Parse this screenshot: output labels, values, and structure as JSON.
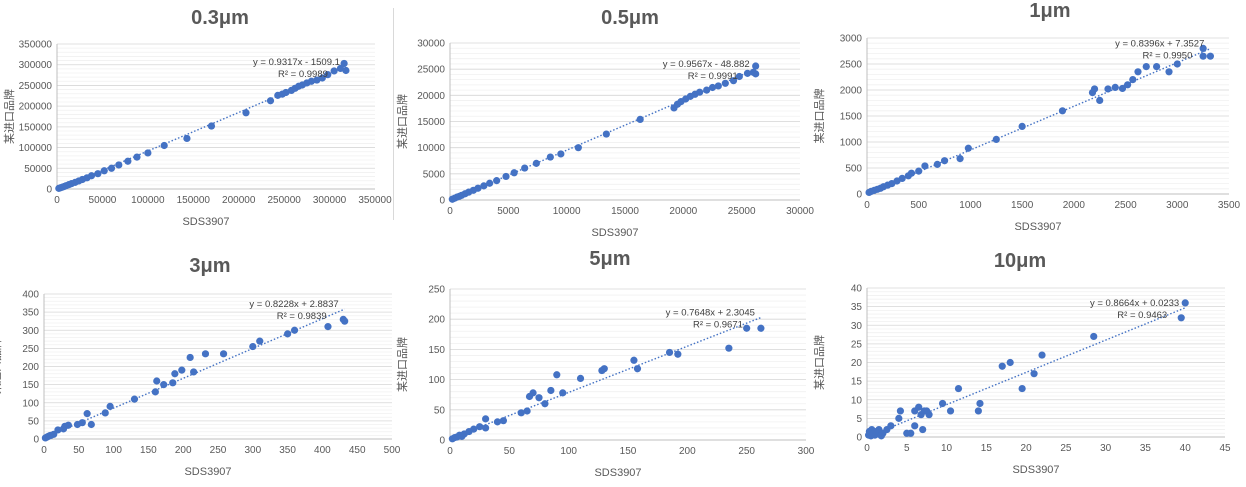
{
  "chart_data": [
    {
      "type": "scatter",
      "title": "0.3μm",
      "xlabel": "SDS3907",
      "ylabel": "某进口品牌",
      "xlim": [
        0,
        350000
      ],
      "xstep": 50000,
      "ylim": [
        0,
        350000
      ],
      "ystep": 50000,
      "grid": true,
      "equation": "y = 0.9317x - 1509.1",
      "r2": "R² = 0.9989",
      "trend": {
        "slope": 0.9317,
        "intercept": -1509.1
      },
      "points": [
        [
          2000,
          1500
        ],
        [
          4000,
          3000
        ],
        [
          6000,
          4500
        ],
        [
          8000,
          6000
        ],
        [
          10000,
          8000
        ],
        [
          13000,
          10500
        ],
        [
          16000,
          13000
        ],
        [
          20000,
          16000
        ],
        [
          24000,
          19500
        ],
        [
          28000,
          23000
        ],
        [
          33000,
          27000
        ],
        [
          38000,
          32000
        ],
        [
          45000,
          37000
        ],
        [
          52000,
          44000
        ],
        [
          60000,
          50000
        ],
        [
          68000,
          58000
        ],
        [
          78000,
          67000
        ],
        [
          88000,
          77000
        ],
        [
          100000,
          87000
        ],
        [
          118000,
          105000
        ],
        [
          143000,
          122000
        ],
        [
          170000,
          152000
        ],
        [
          208000,
          184000
        ],
        [
          235000,
          213000
        ],
        [
          243000,
          226000
        ],
        [
          248000,
          229000
        ],
        [
          252000,
          233000
        ],
        [
          258000,
          238000
        ],
        [
          262000,
          243000
        ],
        [
          266000,
          248000
        ],
        [
          270000,
          251000
        ],
        [
          275000,
          256000
        ],
        [
          280000,
          260000
        ],
        [
          286000,
          263000
        ],
        [
          292000,
          268000
        ],
        [
          298000,
          276000
        ],
        [
          305000,
          285000
        ],
        [
          312000,
          291000
        ],
        [
          316000,
          303000
        ],
        [
          318000,
          286000
        ]
      ]
    },
    {
      "type": "scatter",
      "title": "0.5μm",
      "xlabel": "SDS3907",
      "ylabel": "某进口品牌",
      "xlim": [
        0,
        30000
      ],
      "xstep": 5000,
      "ylim": [
        0,
        30000
      ],
      "ystep": 5000,
      "grid": true,
      "equation": "y = 0.9567x - 48.882",
      "r2": "R² = 0.9991",
      "trend": {
        "slope": 0.9567,
        "intercept": -48.882
      },
      "points": [
        [
          200,
          150
        ],
        [
          400,
          350
        ],
        [
          600,
          550
        ],
        [
          800,
          700
        ],
        [
          1000,
          900
        ],
        [
          1300,
          1200
        ],
        [
          1600,
          1500
        ],
        [
          2000,
          1850
        ],
        [
          2400,
          2250
        ],
        [
          2900,
          2700
        ],
        [
          3400,
          3200
        ],
        [
          4000,
          3700
        ],
        [
          4800,
          4500
        ],
        [
          5500,
          5200
        ],
        [
          6400,
          6100
        ],
        [
          7400,
          7000
        ],
        [
          8600,
          8200
        ],
        [
          9500,
          8800
        ],
        [
          11000,
          10000
        ],
        [
          13400,
          12600
        ],
        [
          16300,
          15400
        ],
        [
          19200,
          17600
        ],
        [
          19500,
          18300
        ],
        [
          19800,
          18800
        ],
        [
          20200,
          19300
        ],
        [
          20600,
          19800
        ],
        [
          21000,
          20200
        ],
        [
          21400,
          20600
        ],
        [
          22000,
          21000
        ],
        [
          22500,
          21500
        ],
        [
          23000,
          21800
        ],
        [
          23600,
          22300
        ],
        [
          24300,
          22800
        ],
        [
          24800,
          23600
        ],
        [
          25500,
          24200
        ],
        [
          26000,
          24400
        ],
        [
          26200,
          25600
        ],
        [
          26200,
          24100
        ]
      ]
    },
    {
      "type": "scatter",
      "title": "1μm",
      "xlabel": "SDS3907",
      "ylabel": "某进口品牌",
      "xlim": [
        0,
        3500
      ],
      "xstep": 500,
      "ylim": [
        0,
        3000
      ],
      "ystep": 500,
      "grid": true,
      "equation": "y = 0.8396x + 7.3527",
      "r2": "R² = 0.9950",
      "trend": {
        "slope": 0.8396,
        "intercept": 7.3527
      },
      "points": [
        [
          20,
          30
        ],
        [
          40,
          50
        ],
        [
          70,
          70
        ],
        [
          100,
          90
        ],
        [
          130,
          110
        ],
        [
          160,
          140
        ],
        [
          200,
          170
        ],
        [
          240,
          200
        ],
        [
          290,
          250
        ],
        [
          340,
          300
        ],
        [
          400,
          350
        ],
        [
          430,
          400
        ],
        [
          500,
          440
        ],
        [
          560,
          540
        ],
        [
          680,
          570
        ],
        [
          750,
          640
        ],
        [
          900,
          680
        ],
        [
          980,
          880
        ],
        [
          1250,
          1050
        ],
        [
          1500,
          1300
        ],
        [
          1890,
          1600
        ],
        [
          2180,
          1950
        ],
        [
          2200,
          2020
        ],
        [
          2250,
          1800
        ],
        [
          2330,
          2020
        ],
        [
          2400,
          2050
        ],
        [
          2470,
          2030
        ],
        [
          2520,
          2100
        ],
        [
          2570,
          2200
        ],
        [
          2620,
          2350
        ],
        [
          2700,
          2450
        ],
        [
          2800,
          2450
        ],
        [
          2920,
          2350
        ],
        [
          3000,
          2500
        ],
        [
          3250,
          2650
        ],
        [
          3320,
          2650
        ],
        [
          3250,
          2800
        ]
      ]
    },
    {
      "type": "scatter",
      "title": "3μm",
      "xlabel": "SDS3907",
      "ylabel": "某进口品牌",
      "xlim": [
        0,
        500
      ],
      "xstep": 50,
      "ylim": [
        0,
        400
      ],
      "ystep": 50,
      "grid": true,
      "equation": "y = 0.8228x + 2.8837",
      "r2": "R² = 0.9839",
      "trend": {
        "slope": 0.8228,
        "intercept": 2.8837
      },
      "points": [
        [
          2,
          3
        ],
        [
          4,
          5
        ],
        [
          6,
          7
        ],
        [
          8,
          9
        ],
        [
          10,
          10
        ],
        [
          14,
          13
        ],
        [
          20,
          25
        ],
        [
          28,
          28
        ],
        [
          30,
          35
        ],
        [
          35,
          38
        ],
        [
          48,
          40
        ],
        [
          55,
          45
        ],
        [
          62,
          70
        ],
        [
          68,
          40
        ],
        [
          88,
          72
        ],
        [
          95,
          90
        ],
        [
          130,
          110
        ],
        [
          160,
          130
        ],
        [
          162,
          160
        ],
        [
          172,
          150
        ],
        [
          185,
          155
        ],
        [
          188,
          180
        ],
        [
          198,
          190
        ],
        [
          210,
          225
        ],
        [
          215,
          185
        ],
        [
          232,
          235
        ],
        [
          258,
          235
        ],
        [
          300,
          255
        ],
        [
          310,
          270
        ],
        [
          350,
          290
        ],
        [
          360,
          300
        ],
        [
          408,
          310
        ],
        [
          430,
          330
        ],
        [
          432,
          325
        ]
      ]
    },
    {
      "type": "scatter",
      "title": "5μm",
      "xlabel": "SDS3907",
      "ylabel": "某进口品牌",
      "xlim": [
        0,
        300
      ],
      "xstep": 50,
      "ylim": [
        0,
        250
      ],
      "ystep": 50,
      "grid": true,
      "equation": "y = 0.7648x + 2.3045",
      "r2": "R² = 0.9671",
      "trend": {
        "slope": 0.7648,
        "intercept": 2.3045
      },
      "points": [
        [
          2,
          2
        ],
        [
          4,
          4
        ],
        [
          6,
          5
        ],
        [
          8,
          8
        ],
        [
          10,
          6
        ],
        [
          12,
          10
        ],
        [
          16,
          14
        ],
        [
          20,
          18
        ],
        [
          25,
          22
        ],
        [
          30,
          20
        ],
        [
          30,
          35
        ],
        [
          40,
          30
        ],
        [
          45,
          32
        ],
        [
          60,
          45
        ],
        [
          65,
          48
        ],
        [
          67,
          72
        ],
        [
          70,
          78
        ],
        [
          75,
          70
        ],
        [
          80,
          60
        ],
        [
          85,
          82
        ],
        [
          90,
          108
        ],
        [
          95,
          78
        ],
        [
          110,
          102
        ],
        [
          128,
          115
        ],
        [
          130,
          118
        ],
        [
          155,
          132
        ],
        [
          158,
          118
        ],
        [
          185,
          145
        ],
        [
          192,
          142
        ],
        [
          235,
          152
        ],
        [
          250,
          185
        ],
        [
          262,
          185
        ]
      ]
    },
    {
      "type": "scatter",
      "title": "10μm",
      "xlabel": "SDS3907",
      "ylabel": "某进口品牌",
      "xlim": [
        0,
        45
      ],
      "xstep": 5,
      "ylim": [
        0,
        40
      ],
      "ystep": 5,
      "grid": true,
      "equation": "y = 0.8664x + 0.0233",
      "r2": "R² = 0.9463",
      "trend": {
        "slope": 0.8664,
        "intercept": 0.0233
      },
      "points": [
        [
          0.2,
          0.5
        ],
        [
          0.3,
          1.5
        ],
        [
          0.5,
          0.3
        ],
        [
          0.6,
          2
        ],
        [
          0.8,
          1
        ],
        [
          1,
          0.5
        ],
        [
          1.2,
          1.5
        ],
        [
          1.5,
          2
        ],
        [
          1.8,
          0.3
        ],
        [
          2,
          1
        ],
        [
          2.5,
          2
        ],
        [
          3,
          3
        ],
        [
          4,
          5
        ],
        [
          4.2,
          7
        ],
        [
          5,
          1
        ],
        [
          5.5,
          1
        ],
        [
          6,
          3
        ],
        [
          6,
          7
        ],
        [
          6.5,
          8
        ],
        [
          6.8,
          6
        ],
        [
          7,
          2
        ],
        [
          7.2,
          7
        ],
        [
          7.5,
          7
        ],
        [
          7.8,
          6
        ],
        [
          9.5,
          9
        ],
        [
          10.5,
          7
        ],
        [
          11.5,
          13
        ],
        [
          14,
          7
        ],
        [
          14.2,
          9
        ],
        [
          17,
          19
        ],
        [
          18,
          20
        ],
        [
          19.5,
          13
        ],
        [
          21,
          17
        ],
        [
          22,
          22
        ],
        [
          28.5,
          27
        ],
        [
          39.5,
          32
        ],
        [
          40,
          36
        ]
      ]
    }
  ]
}
